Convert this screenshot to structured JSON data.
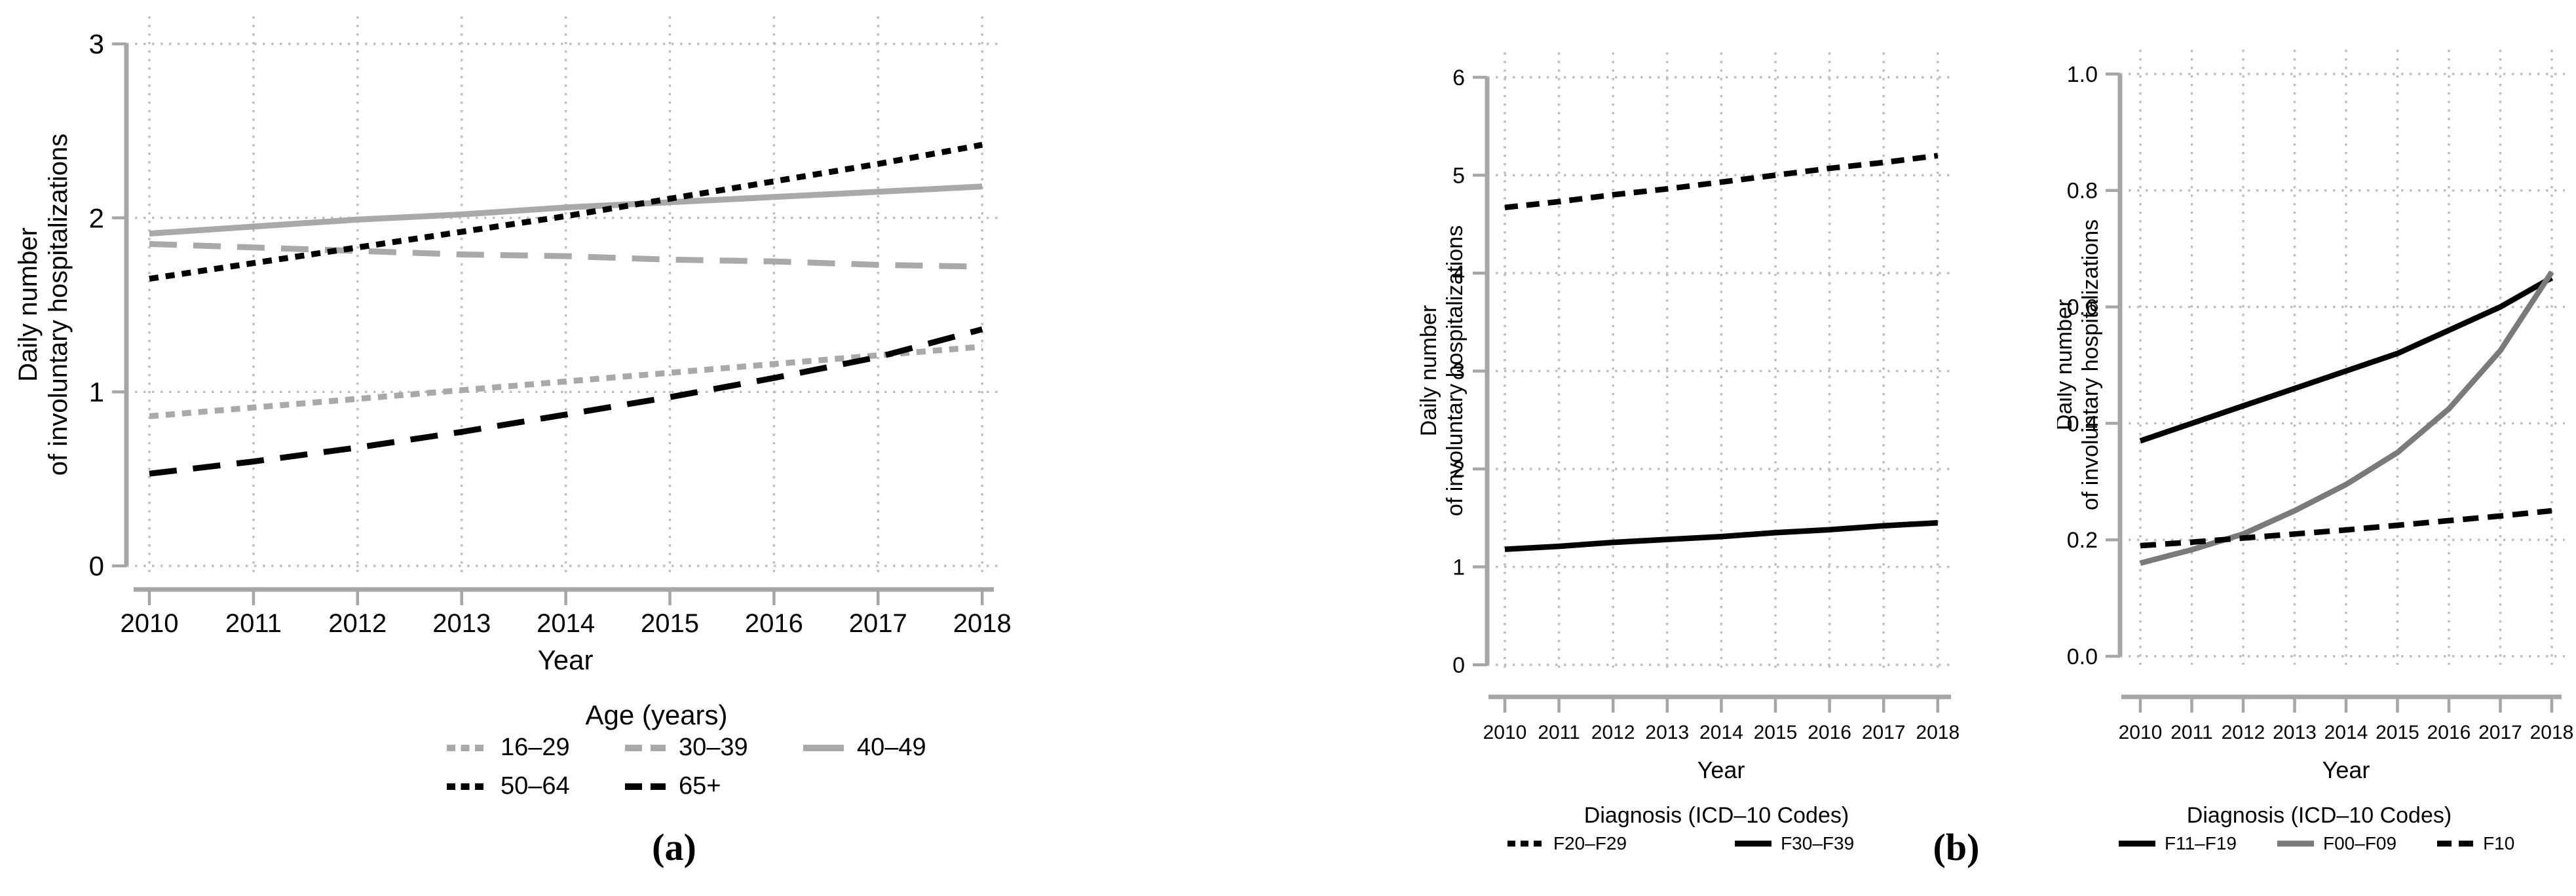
{
  "figure": {
    "background": "#ffffff",
    "captions": {
      "a": "(a)",
      "b": "(b)"
    }
  },
  "colors": {
    "black": "#000000",
    "gray_light_series": "#a9a9a9",
    "gray_dark_series": "#7a7a7a",
    "axis_gray": "#a6a6a6",
    "grid_gray": "#bfbfbf"
  },
  "chart_data": [
    {
      "id": "a",
      "type": "line",
      "title": "",
      "xlabel": "Year",
      "ylabel_lines": [
        "Daily number",
        "of involuntary hospitalizations"
      ],
      "x": [
        2010,
        2011,
        2012,
        2013,
        2014,
        2015,
        2016,
        2017,
        2018
      ],
      "x_tick_labels": [
        "2010",
        "2011",
        "2012",
        "2013",
        "2014",
        "2015",
        "2016",
        "2017",
        "2018"
      ],
      "xlim": [
        2010,
        2018
      ],
      "ylim": [
        0,
        3
      ],
      "y_ticks": [
        0,
        1,
        2,
        3
      ],
      "y_tick_labels": [
        "0",
        "1",
        "2",
        "3"
      ],
      "grid": "dotted",
      "legend": {
        "title": "Age (years)",
        "position": "below-center",
        "rows": [
          [
            "16–29",
            "30–39",
            "40–49"
          ],
          [
            "50–64",
            "65+"
          ]
        ]
      },
      "series": [
        {
          "name": "16–29",
          "color": "#a9a9a9",
          "style": "dotted",
          "values": [
            0.86,
            0.91,
            0.96,
            1.01,
            1.06,
            1.11,
            1.16,
            1.21,
            1.26
          ]
        },
        {
          "name": "30–39",
          "color": "#a9a9a9",
          "style": "dashed",
          "values": [
            1.85,
            1.83,
            1.81,
            1.79,
            1.78,
            1.76,
            1.75,
            1.73,
            1.72
          ]
        },
        {
          "name": "40–49",
          "color": "#a9a9a9",
          "style": "solid",
          "values": [
            1.91,
            1.95,
            1.99,
            2.02,
            2.06,
            2.09,
            2.12,
            2.15,
            2.18
          ]
        },
        {
          "name": "50–64",
          "color": "#000000",
          "style": "dotted",
          "values": [
            1.65,
            1.74,
            1.83,
            1.92,
            2.01,
            2.11,
            2.21,
            2.31,
            2.42
          ]
        },
        {
          "name": "65+",
          "color": "#000000",
          "style": "dashed",
          "values": [
            0.53,
            0.6,
            0.68,
            0.77,
            0.87,
            0.97,
            1.08,
            1.2,
            1.36
          ]
        }
      ]
    },
    {
      "id": "b1",
      "type": "line",
      "title": "",
      "xlabel": "Year",
      "ylabel_lines": [
        "Daily number",
        "of involuntary hospitalizations"
      ],
      "x": [
        2010,
        2011,
        2012,
        2013,
        2014,
        2015,
        2016,
        2017,
        2018
      ],
      "x_tick_labels": [
        "2010",
        "2011",
        "2012",
        "2013",
        "2014",
        "2015",
        "2016",
        "2017",
        "2018"
      ],
      "xlim": [
        2010,
        2018
      ],
      "ylim": [
        0,
        6
      ],
      "y_ticks": [
        0,
        1,
        2,
        3,
        4,
        5,
        6
      ],
      "y_tick_labels": [
        "0",
        "1",
        "2",
        "3",
        "4",
        "5",
        "6"
      ],
      "grid": "dotted",
      "legend": {
        "title": "Diagnosis (ICD–10 Codes)",
        "position": "below-center",
        "rows": [
          [
            "F20–F29",
            "F30–F39"
          ]
        ]
      },
      "series": [
        {
          "name": "F20–F29",
          "color": "#000000",
          "style": "dotted",
          "values": [
            4.67,
            4.73,
            4.8,
            4.86,
            4.93,
            5.0,
            5.07,
            5.13,
            5.2
          ]
        },
        {
          "name": "F30–F39",
          "color": "#000000",
          "style": "solid",
          "values": [
            1.18,
            1.21,
            1.25,
            1.28,
            1.31,
            1.35,
            1.38,
            1.42,
            1.45
          ]
        }
      ]
    },
    {
      "id": "b2",
      "type": "line",
      "title": "",
      "xlabel": "Year",
      "ylabel_lines": [
        "Daily number",
        "of involuntary hospitalizations"
      ],
      "x": [
        2010,
        2011,
        2012,
        2013,
        2014,
        2015,
        2016,
        2017,
        2018
      ],
      "x_tick_labels": [
        "2010",
        "2011",
        "2012",
        "2013",
        "2014",
        "2015",
        "2016",
        "2017",
        "2018"
      ],
      "xlim": [
        2010,
        2018
      ],
      "ylim": [
        0,
        1
      ],
      "y_ticks": [
        0,
        0.2,
        0.4,
        0.6,
        0.8,
        1.0
      ],
      "y_tick_labels": [
        "0.0",
        "0.2",
        "0.4",
        "0.6",
        "0.8",
        "1.0"
      ],
      "grid": "dotted",
      "legend": {
        "title": "Diagnosis (ICD–10 Codes)",
        "position": "below-center",
        "rows": [
          [
            "F11–F19",
            "F00–F09",
            "F10"
          ]
        ]
      },
      "series": [
        {
          "name": "F11–F19",
          "color": "#000000",
          "style": "solid",
          "values": [
            0.37,
            0.4,
            0.43,
            0.46,
            0.49,
            0.52,
            0.56,
            0.6,
            0.65
          ]
        },
        {
          "name": "F00–F09",
          "color": "#7a7a7a",
          "style": "solid",
          "values": [
            0.16,
            0.183,
            0.21,
            0.25,
            0.295,
            0.35,
            0.425,
            0.525,
            0.66
          ]
        },
        {
          "name": "F10",
          "color": "#000000",
          "style": "dashed",
          "values": [
            0.19,
            0.196,
            0.203,
            0.21,
            0.217,
            0.225,
            0.233,
            0.241,
            0.25
          ]
        }
      ]
    }
  ]
}
